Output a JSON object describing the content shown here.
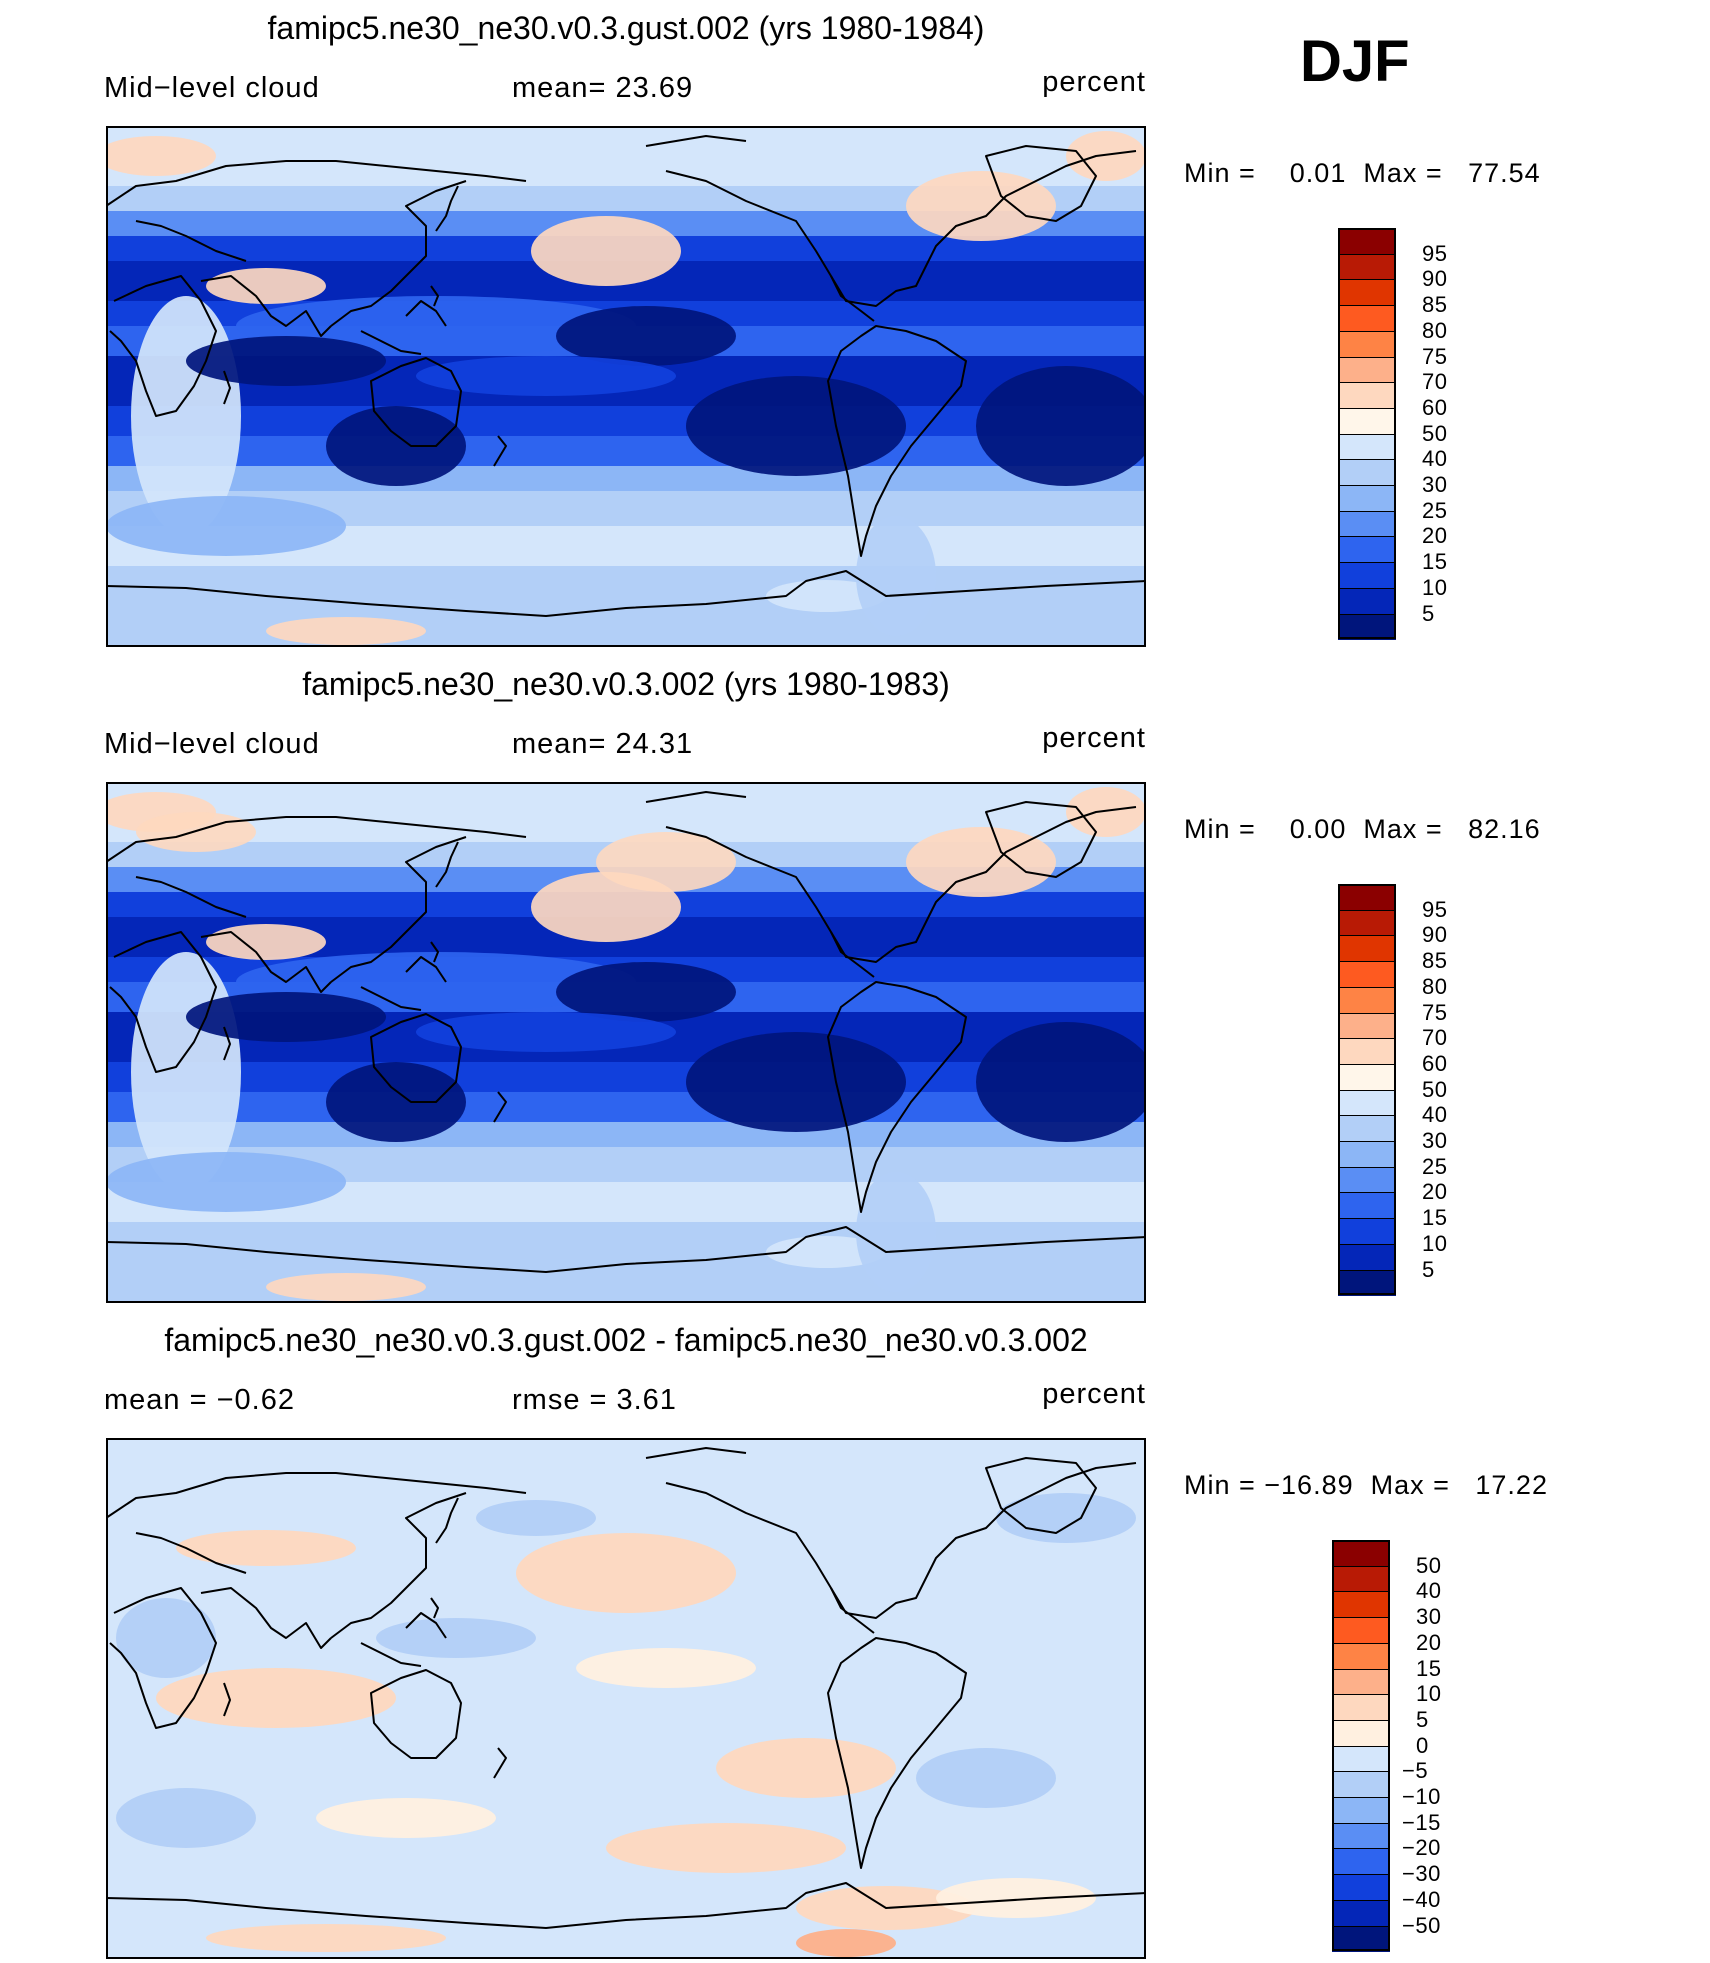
{
  "season": "DJF",
  "panels": [
    {
      "title": "famipc5.ne30_ne30.v0.3.gust.002 (yrs 1980-1984)",
      "left_label": "Mid−level cloud",
      "mid_label": "mean=   23.69",
      "units": "percent",
      "stats": "Min =    0.01  Max =   77.54",
      "map_type": "absolute",
      "colorbar": {
        "labels": [
          "95",
          "90",
          "85",
          "80",
          "75",
          "70",
          "60",
          "50",
          "40",
          "30",
          "25",
          "20",
          "15",
          "10",
          "5"
        ],
        "colors": [
          "#8b0000",
          "#b81a05",
          "#e03500",
          "#fe5a20",
          "#fe8345",
          "#fdb08a",
          "#fed8bf",
          "#fff6ea",
          "#d4e6fb",
          "#b2cff7",
          "#8cb6f6",
          "#5a8ef4",
          "#2e64ef",
          "#1140dc",
          "#0426b8",
          "#00157c"
        ]
      }
    },
    {
      "title": "famipc5.ne30_ne30.v0.3.002 (yrs 1980-1983)",
      "left_label": "Mid−level cloud",
      "mid_label": "mean=   24.31",
      "units": "percent",
      "stats": "Min =    0.00  Max =   82.16",
      "map_type": "absolute",
      "colorbar": {
        "labels": [
          "95",
          "90",
          "85",
          "80",
          "75",
          "70",
          "60",
          "50",
          "40",
          "30",
          "25",
          "20",
          "15",
          "10",
          "5"
        ],
        "colors": [
          "#8b0000",
          "#b81a05",
          "#e03500",
          "#fe5a20",
          "#fe8345",
          "#fdb08a",
          "#fed8bf",
          "#fff6ea",
          "#d4e6fb",
          "#b2cff7",
          "#8cb6f6",
          "#5a8ef4",
          "#2e64ef",
          "#1140dc",
          "#0426b8",
          "#00157c"
        ]
      }
    },
    {
      "title": "famipc5.ne30_ne30.v0.3.gust.002 - famipc5.ne30_ne30.v0.3.002",
      "left_label": "mean =   −0.62",
      "mid_label": "rmse =    3.61",
      "units": "percent",
      "stats": "Min = −16.89  Max =   17.22",
      "map_type": "difference",
      "colorbar": {
        "labels": [
          "50",
          "40",
          "30",
          "20",
          "15",
          "10",
          "5",
          "0",
          "−5",
          "−10",
          "−15",
          "−20",
          "−30",
          "−40",
          "−50"
        ],
        "colors": [
          "#8b0000",
          "#b81a05",
          "#e03500",
          "#fe5a20",
          "#fe8345",
          "#fdb08a",
          "#fed8bf",
          "#fff0e0",
          "#d4e6fb",
          "#b2cff7",
          "#8cb6f6",
          "#5a8ef4",
          "#2e64ef",
          "#1140dc",
          "#0426b8",
          "#00157c"
        ]
      }
    }
  ]
}
